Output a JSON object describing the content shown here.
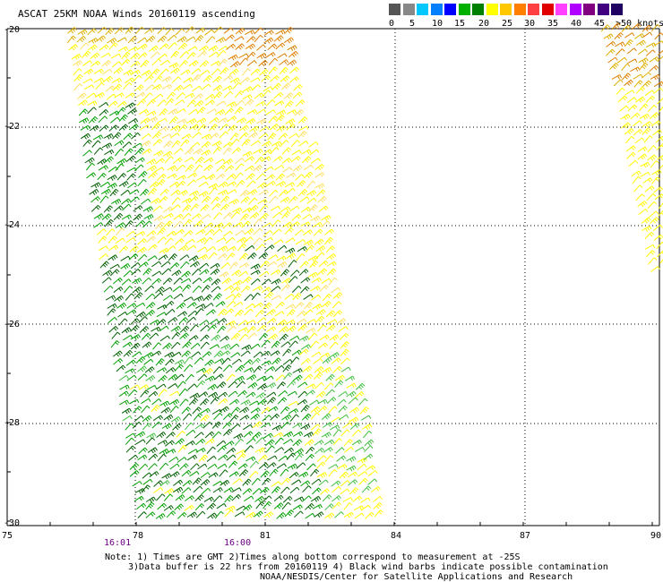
{
  "title": "ASCAT 25KM NOAA Winds 20160119 ascending",
  "legend": {
    "colors": [
      "#555555",
      "#888888",
      "#00c8ff",
      "#0080ff",
      "#0000ff",
      "#00b000",
      "#008000",
      "#ffff00",
      "#ffc800",
      "#ff8000",
      "#ff4040",
      "#e00000",
      "#ff40ff",
      "#b000ff",
      "#800080",
      "#400080",
      "#200060"
    ],
    "labels": [
      "0",
      "5",
      "10",
      "15",
      "20",
      "25",
      "30",
      "35",
      "40",
      "45",
      ">50 knots"
    ]
  },
  "axes": {
    "lat_labels": [
      "-20",
      "-22",
      "-24",
      "-26",
      "-28",
      "-30"
    ],
    "lon_labels": [
      "75",
      "78",
      "81",
      "84",
      "87",
      "90"
    ]
  },
  "times": [
    "16:01",
    "16:00"
  ],
  "notes": [
    "Note: 1) Times are GMT 2)Times along bottom correspond to measurement at -25S",
    "3)Data buffer is 22 hrs from 20160119 4) Black wind barbs indicate possible contamination",
    "NOAA/NESDIS/Center for Satellite Applications and Research"
  ],
  "barb_colors": {
    "dark_green": "#006000",
    "green": "#00a000",
    "light_green": "#40c040",
    "yellow": "#ffff00",
    "light_yellow": "#ffe060",
    "gold": "#e0b000",
    "orange": "#e08000"
  }
}
